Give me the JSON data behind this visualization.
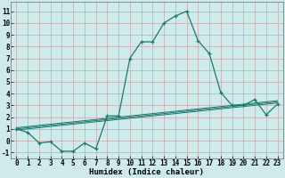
{
  "xlabel": "Humidex (Indice chaleur)",
  "x": [
    0,
    1,
    2,
    3,
    4,
    5,
    6,
    7,
    8,
    9,
    10,
    11,
    12,
    13,
    14,
    15,
    16,
    17,
    18,
    19,
    20,
    21,
    22,
    23
  ],
  "y_main": [
    1.0,
    0.7,
    -0.2,
    -0.1,
    -0.9,
    -0.9,
    -0.2,
    -0.7,
    2.1,
    2.1,
    7.0,
    8.4,
    8.4,
    10.0,
    10.6,
    11.0,
    8.5,
    7.4,
    4.1,
    3.0,
    3.0,
    3.5,
    2.2,
    3.1
  ],
  "y_trend1": [
    0.9,
    1.0,
    1.1,
    1.2,
    1.3,
    1.4,
    1.5,
    1.6,
    1.7,
    1.8,
    1.9,
    2.0,
    2.1,
    2.2,
    2.3,
    2.4,
    2.5,
    2.6,
    2.7,
    2.8,
    2.9,
    3.0,
    3.1,
    3.2
  ],
  "y_trend2": [
    1.0,
    1.1,
    1.2,
    1.3,
    1.4,
    1.5,
    1.6,
    1.7,
    1.8,
    1.9,
    2.0,
    2.1,
    2.2,
    2.3,
    2.4,
    2.5,
    2.6,
    2.7,
    2.8,
    2.9,
    3.0,
    3.1,
    3.2,
    3.3
  ],
  "y_trend3": [
    1.1,
    1.2,
    1.3,
    1.4,
    1.5,
    1.6,
    1.7,
    1.8,
    1.9,
    2.0,
    2.1,
    2.2,
    2.3,
    2.4,
    2.5,
    2.6,
    2.7,
    2.8,
    2.9,
    3.0,
    3.1,
    3.2,
    3.3,
    3.4
  ],
  "line_color": "#1a7a6e",
  "bg_color": "#ceeaea",
  "grid_color": "#c8a8a8",
  "ylim": [
    -1.5,
    11.8
  ],
  "xlim": [
    -0.5,
    23.5
  ],
  "yticks": [
    -1,
    0,
    1,
    2,
    3,
    4,
    5,
    6,
    7,
    8,
    9,
    10,
    11
  ],
  "xticks": [
    0,
    1,
    2,
    3,
    4,
    5,
    6,
    7,
    8,
    9,
    10,
    11,
    12,
    13,
    14,
    15,
    16,
    17,
    18,
    19,
    20,
    21,
    22,
    23
  ],
  "xlabel_fontsize": 6.5,
  "tick_fontsize": 5.5
}
